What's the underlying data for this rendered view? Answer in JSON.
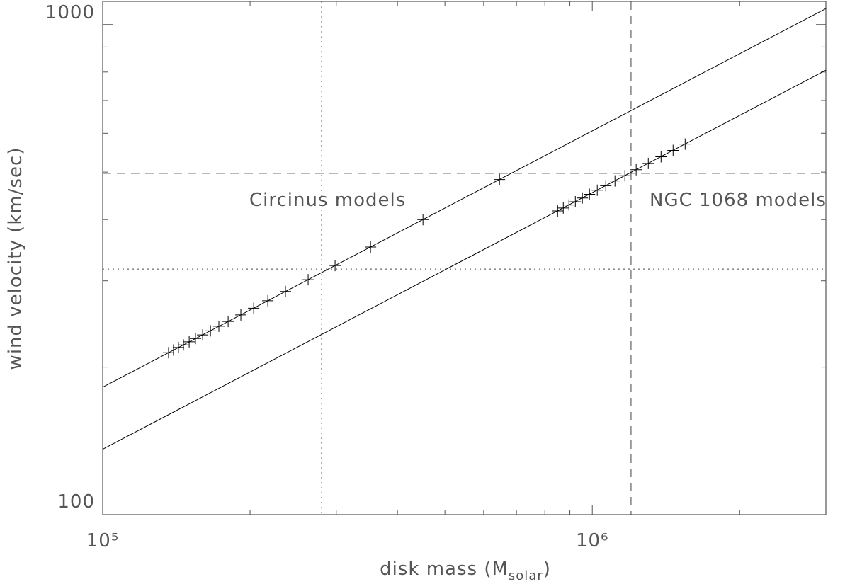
{
  "chart_data": {
    "type": "scatter",
    "xlabel": [
      "disk mass (M",
      "solar",
      ")"
    ],
    "ylabel": "wind velocity (km/sec)",
    "xscale": "log",
    "yscale": "log",
    "xlim": [
      100000,
      3000000
    ],
    "ylim": [
      100,
      1115
    ],
    "xticks": [
      {
        "value": 100000,
        "label": "10⁵"
      },
      {
        "value": 1000000,
        "label": "10⁶"
      }
    ],
    "xminor": [
      200000,
      300000,
      400000,
      500000,
      600000,
      700000,
      800000,
      900000,
      2000000
    ],
    "yticks": [
      100,
      1000
    ],
    "yminor": [
      200,
      300,
      400,
      500,
      600,
      700,
      800,
      900
    ],
    "color": "#000000",
    "lines": [
      {
        "x": [
          100000,
          3000000
        ],
        "values": [
          182,
          1078
        ]
      },
      {
        "x": [
          100000,
          3000000
        ],
        "values": [
          136,
          807
        ]
      }
    ],
    "hlines": [
      {
        "value": 497,
        "style": "dashed"
      },
      {
        "value": 317,
        "style": "dotted"
      }
    ],
    "vlines": [
      {
        "value": 280000,
        "style": "dotted"
      },
      {
        "value": 1200000,
        "style": "dashed"
      }
    ],
    "series": [
      {
        "x": [
          136300,
          139500,
          142800,
          146200,
          150200,
          154700,
          160000,
          166000,
          172700,
          180400,
          191500,
          203400,
          217400,
          236200,
          262800,
          298300,
          352400,
          451000,
          646300
        ],
        "values": [
          214,
          216.7,
          219.3,
          222,
          225.2,
          228.7,
          232.7,
          237.2,
          242.3,
          247.8,
          255.6,
          263.8,
          273.2,
          285.3,
          301.6,
          322.3,
          351.6,
          400,
          482.9
        ]
      },
      {
        "x": [
          849500,
          872500,
          896000,
          923400,
          954400,
          986800,
          1023600,
          1065400,
          1112500,
          1165600,
          1229200,
          1301300,
          1381800,
          1462200,
          1547500
        ],
        "values": [
          416.5,
          422.4,
          428.3,
          434.9,
          442.7,
          450.4,
          459.2,
          469,
          479.7,
          491.6,
          505.6,
          520.8,
          537.3,
          553.5,
          570.2
        ]
      }
    ],
    "annotations": [
      "Circinus models",
      "NGC 1068 models"
    ]
  }
}
